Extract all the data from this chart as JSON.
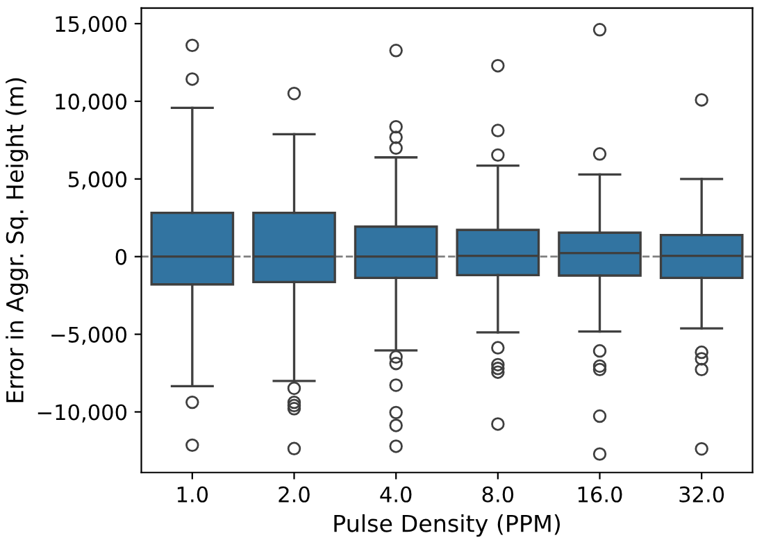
{
  "chart_data": {
    "type": "box",
    "xlabel": "Pulse Density (PPM)",
    "ylabel": "Error in Aggr. Sq. Height (m)",
    "categories": [
      "1.0",
      "2.0",
      "4.0",
      "8.0",
      "16.0",
      "32.0"
    ],
    "color": "#3274a1",
    "boxes": [
      {
        "low": -8340,
        "q1": -1790,
        "median": 0,
        "q3": 2820,
        "high": 9580,
        "outliers": [
          13600,
          11430,
          -9380,
          -12140
        ]
      },
      {
        "low": -8010,
        "q1": -1640,
        "median": 0,
        "q3": 2820,
        "high": 7880,
        "outliers": [
          10500,
          -8480,
          -9380,
          -9590,
          -9790,
          -12360
        ]
      },
      {
        "low": -6040,
        "q1": -1370,
        "median": 0,
        "q3": 1930,
        "high": 6390,
        "outliers": [
          13270,
          8360,
          7680,
          6990,
          -6460,
          -6880,
          -8280,
          -10040,
          -10870,
          -12210
        ]
      },
      {
        "low": -4880,
        "q1": -1190,
        "median": 50,
        "q3": 1720,
        "high": 5860,
        "outliers": [
          12290,
          8120,
          6540,
          -5870,
          -6960,
          -7200,
          -7440,
          -10780
        ]
      },
      {
        "low": -4820,
        "q1": -1220,
        "median": 230,
        "q3": 1540,
        "high": 5290,
        "outliers": [
          14610,
          6610,
          -6070,
          -7050,
          -7270,
          -10270,
          -12710
        ]
      },
      {
        "low": -4620,
        "q1": -1370,
        "median": 50,
        "q3": 1390,
        "high": 5000,
        "outliers": [
          10090,
          -6160,
          -6580,
          -7270,
          -12380
        ]
      }
    ],
    "ylim": [
      -13900,
      16000
    ],
    "yticks": [
      {
        "value": -10000,
        "label": "−10,000"
      },
      {
        "value": -5000,
        "label": "−5,000"
      },
      0,
      {
        "value": 5000,
        "label": "5,000"
      },
      {
        "value": 10000,
        "label": "10,000"
      },
      {
        "value": 15000,
        "label": "15,000"
      }
    ],
    "ref_lines": [
      {
        "axis": "y",
        "value": 0,
        "label": null,
        "color": "#808080",
        "line_style": "dashed"
      }
    ],
    "grid": false
  }
}
